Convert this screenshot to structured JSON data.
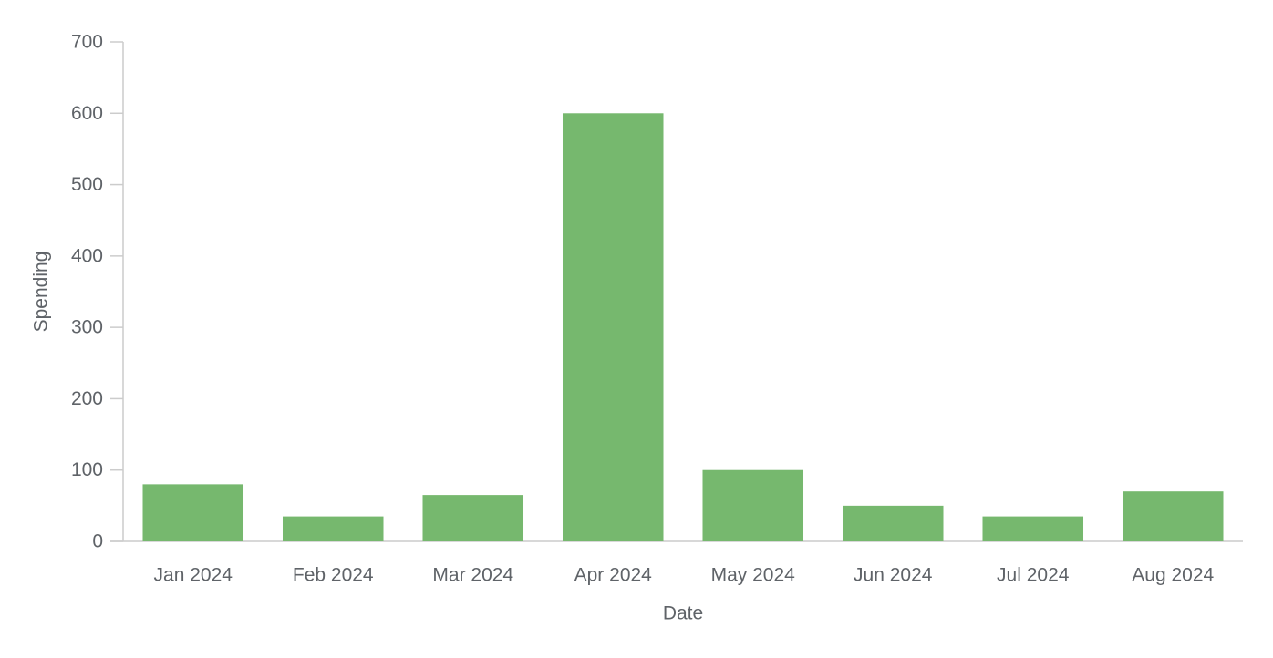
{
  "chart_data": {
    "type": "bar",
    "title": "",
    "xlabel": "Date",
    "ylabel": "Spending",
    "categories": [
      "Jan 2024",
      "Feb 2024",
      "Mar 2024",
      "Apr 2024",
      "May 2024",
      "Jun 2024",
      "Jul 2024",
      "Aug 2024"
    ],
    "values": [
      80,
      35,
      65,
      600,
      100,
      50,
      35,
      70
    ],
    "ylim": [
      0,
      700
    ],
    "yticks": [
      "0",
      "100",
      "200",
      "300",
      "400",
      "500",
      "600",
      "700"
    ],
    "grid": false,
    "legend": "none",
    "colors": {
      "bar": "#76b86e",
      "axis": "#cccccc",
      "text": "#5f6368"
    }
  }
}
